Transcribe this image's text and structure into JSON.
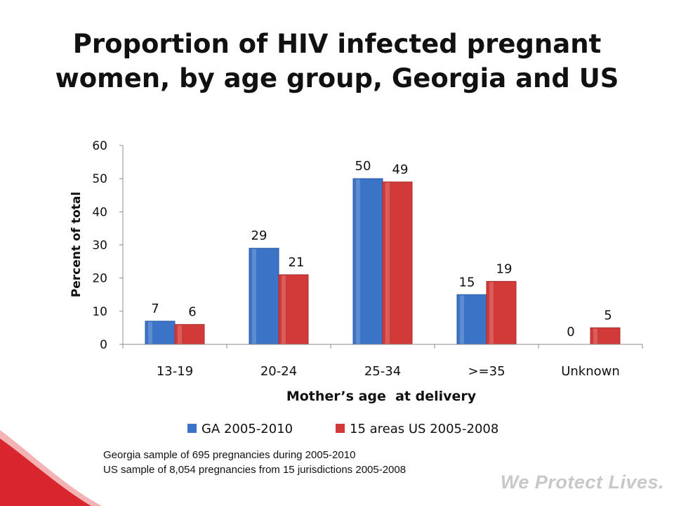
{
  "title_lines": [
    "Proportion of HIV infected pregnant",
    "women, by age group, Georgia and US"
  ],
  "chart_data": {
    "type": "bar",
    "categories": [
      "13-19",
      "20-24",
      "25-34",
      ">=35",
      "Unknown"
    ],
    "series": [
      {
        "name": "GA 2005-2010",
        "values": [
          7,
          29,
          50,
          15,
          0
        ],
        "labels": [
          "7",
          "29",
          "50",
          "15",
          "0"
        ],
        "color": "#3b73c7"
      },
      {
        "name": "15 areas US 2005-2008",
        "values": [
          6,
          21,
          49,
          19,
          5
        ],
        "labels": [
          "6",
          "21",
          "49",
          "19",
          "5"
        ],
        "color": "#d23a39"
      }
    ],
    "xlabel": "Mother’s age  at delivery",
    "ylabel": "Percent of total",
    "ylim": [
      0,
      60
    ],
    "yticks": [
      "0",
      "10",
      "20",
      "30",
      "40",
      "50",
      "60"
    ],
    "legend_position": "bottom"
  },
  "notes": [
    "Georgia sample of 695 pregnancies during 2005-2010",
    "US sample of 8,054 pregnancies from 15 jurisdictions 2005-2008"
  ],
  "slogan": "We Protect Lives.",
  "colors": {
    "accent": "#d9262e",
    "ga": "#3b73c7",
    "us": "#d23a39"
  }
}
